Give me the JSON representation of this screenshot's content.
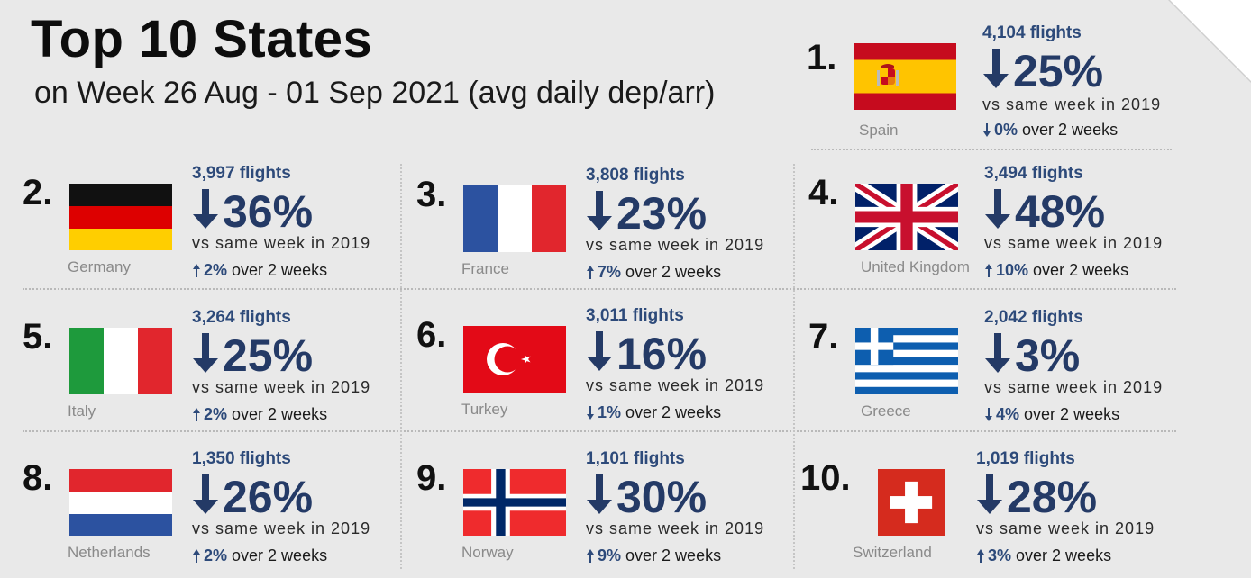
{
  "title": "Top 10 States",
  "subtitle": "on Week 26 Aug - 01 Sep 2021 (avg daily dep/arr)",
  "vs_text": "vs same week in 2019",
  "trend_suffix": "over 2 weeks",
  "colors": {
    "accent": "#243a66",
    "flights": "#2d4a7a",
    "background": "#e9e9e9"
  },
  "chart_data": {
    "type": "table",
    "title": "Top 10 States",
    "subtitle": "on Week 26 Aug - 01 Sep 2021 (avg daily dep/arr)",
    "columns": [
      "rank",
      "country",
      "flights",
      "change_vs_2019",
      "change_over_2_weeks"
    ],
    "rows": [
      {
        "rank": "1.",
        "country": "Spain",
        "flights_label": "4,104 flights",
        "flights": 4104,
        "pct_label": "25%",
        "pct": -25,
        "pct_dir": "down",
        "trend_label": "0%",
        "trend": 0,
        "trend_dir": "down",
        "flag": "spain-flag"
      },
      {
        "rank": "2.",
        "country": "Germany",
        "flights_label": "3,997 flights",
        "flights": 3997,
        "pct_label": "36%",
        "pct": -36,
        "pct_dir": "down",
        "trend_label": "2%",
        "trend": 2,
        "trend_dir": "up",
        "flag": "germany-flag"
      },
      {
        "rank": "3.",
        "country": "France",
        "flights_label": "3,808 flights",
        "flights": 3808,
        "pct_label": "23%",
        "pct": -23,
        "pct_dir": "down",
        "trend_label": "7%",
        "trend": 7,
        "trend_dir": "up",
        "flag": "france-flag"
      },
      {
        "rank": "4.",
        "country": "United Kingdom",
        "flights_label": "3,494 flights",
        "flights": 3494,
        "pct_label": "48%",
        "pct": -48,
        "pct_dir": "down",
        "trend_label": "10%",
        "trend": 10,
        "trend_dir": "up",
        "flag": "uk-flag"
      },
      {
        "rank": "5.",
        "country": "Italy",
        "flights_label": "3,264 flights",
        "flights": 3264,
        "pct_label": "25%",
        "pct": -25,
        "pct_dir": "down",
        "trend_label": "2%",
        "trend": 2,
        "trend_dir": "up",
        "flag": "italy-flag"
      },
      {
        "rank": "6.",
        "country": "Turkey",
        "flights_label": "3,011 flights",
        "flights": 3011,
        "pct_label": "16%",
        "pct": -16,
        "pct_dir": "down",
        "trend_label": "1%",
        "trend": -1,
        "trend_dir": "down",
        "flag": "turkey-flag"
      },
      {
        "rank": "7.",
        "country": "Greece",
        "flights_label": "2,042 flights",
        "flights": 2042,
        "pct_label": "3%",
        "pct": -3,
        "pct_dir": "down",
        "trend_label": "4%",
        "trend": -4,
        "trend_dir": "down",
        "flag": "greece-flag"
      },
      {
        "rank": "8.",
        "country": "Netherlands",
        "flights_label": "1,350 flights",
        "flights": 1350,
        "pct_label": "26%",
        "pct": -26,
        "pct_dir": "down",
        "trend_label": "2%",
        "trend": 2,
        "trend_dir": "up",
        "flag": "netherlands-flag"
      },
      {
        "rank": "9.",
        "country": "Norway",
        "flights_label": "1,101 flights",
        "flights": 1101,
        "pct_label": "30%",
        "pct": -30,
        "pct_dir": "down",
        "trend_label": "9%",
        "trend": 9,
        "trend_dir": "up",
        "flag": "norway-flag"
      },
      {
        "rank": "10.",
        "country": "Switzerland",
        "flights_label": "1,019 flights",
        "flights": 1019,
        "pct_label": "28%",
        "pct": -28,
        "pct_dir": "down",
        "trend_label": "3%",
        "trend": 3,
        "trend_dir": "up",
        "flag": "switzerland-flag"
      }
    ]
  }
}
